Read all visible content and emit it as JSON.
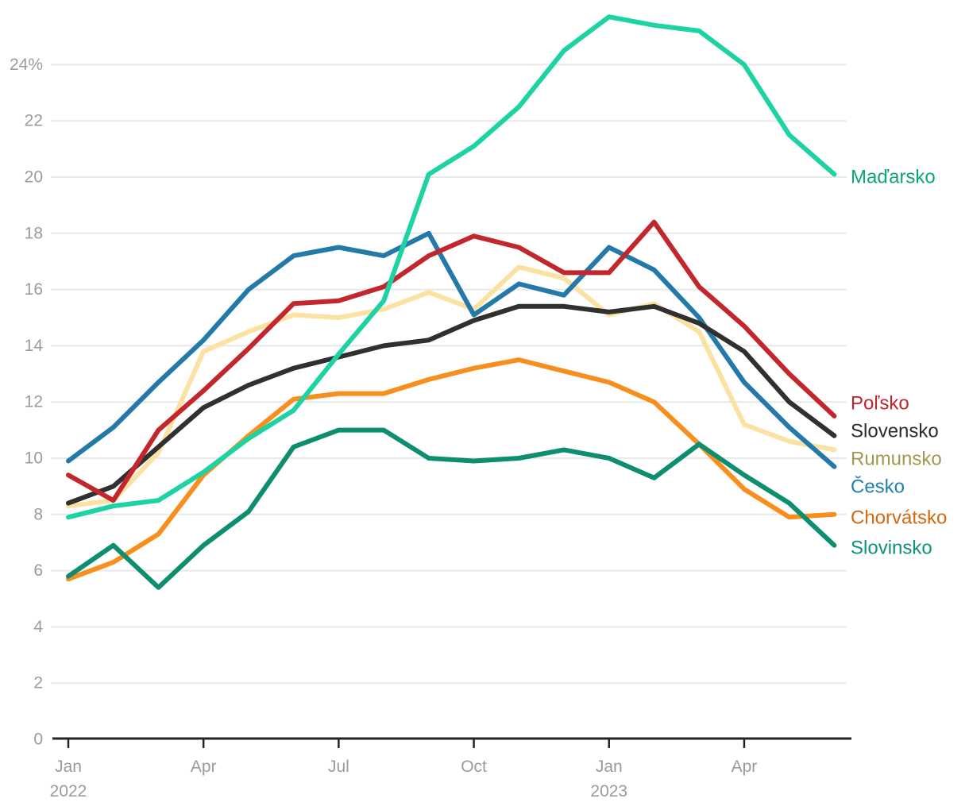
{
  "page": {
    "background_color": "#ffffff",
    "title": ""
  },
  "style": {
    "grid_color": "#e8e8e8",
    "axis_color": "#242424",
    "tick_label_color": "#9b9b9b"
  },
  "chart_data": {
    "type": "line",
    "title": "",
    "unit": "%",
    "grid": "horizontal",
    "legend_position": "right-of-line-ends",
    "x_categories": [
      "Jan 2022",
      "Feb 2022",
      "Mar 2022",
      "Apr 2022",
      "May 2022",
      "Jun 2022",
      "Jul 2022",
      "Aug 2022",
      "Sep 2022",
      "Oct 2022",
      "Nov 2022",
      "Dec 2022",
      "Jan 2023",
      "Feb 2023",
      "Mar 2023",
      "Apr 2023",
      "May 2023",
      "Jun 2023"
    ],
    "y_axis": {
      "min": 0,
      "max": 24,
      "tick_step": 2,
      "tick_labels": [
        "0",
        "2",
        "4",
        "6",
        "8",
        "10",
        "12",
        "14",
        "16",
        "18",
        "20",
        "22",
        "24%"
      ]
    },
    "x_axis": {
      "ticks": [
        {
          "index": 0,
          "label": "Jan",
          "year": "2022"
        },
        {
          "index": 3,
          "label": "Apr",
          "year": ""
        },
        {
          "index": 6,
          "label": "Jul",
          "year": ""
        },
        {
          "index": 9,
          "label": "Oct",
          "year": ""
        },
        {
          "index": 12,
          "label": "Jan",
          "year": "2023"
        },
        {
          "index": 15,
          "label": "Apr",
          "year": ""
        }
      ]
    },
    "series": [
      {
        "id": "rumunsko",
        "name": "Rumunsko",
        "line_color": "#fbe2a3",
        "label_color": "#a3974d",
        "values": [
          8.3,
          8.5,
          10.2,
          13.8,
          14.5,
          15.1,
          15.0,
          15.3,
          15.9,
          15.3,
          16.8,
          16.4,
          15.1,
          15.5,
          14.5,
          11.2,
          10.6,
          10.3
        ]
      },
      {
        "id": "cesko",
        "name": "Česko",
        "line_color": "#2379a8",
        "label_color": "#2180ad",
        "values": [
          9.9,
          11.1,
          12.7,
          14.2,
          16.0,
          17.2,
          17.5,
          17.2,
          18.0,
          15.1,
          16.2,
          15.8,
          17.5,
          16.7,
          15.0,
          12.7,
          11.1,
          9.7
        ]
      },
      {
        "id": "slovensko",
        "name": "Slovensko",
        "line_color": "#303030",
        "label_color": "#2b2b2e",
        "values": [
          8.4,
          9.0,
          10.4,
          11.8,
          12.6,
          13.2,
          13.6,
          14.0,
          14.2,
          14.9,
          15.4,
          15.4,
          15.2,
          15.4,
          14.8,
          13.8,
          12.0,
          10.8
        ]
      },
      {
        "id": "polsko",
        "name": "Poľsko",
        "line_color": "#c2272d",
        "label_color": "#c3242b",
        "values": [
          9.4,
          8.5,
          11.0,
          12.4,
          13.9,
          15.5,
          15.6,
          16.1,
          17.2,
          17.9,
          17.5,
          16.6,
          16.6,
          18.4,
          16.1,
          14.7,
          13.0,
          11.5
        ]
      },
      {
        "id": "chorvatsko",
        "name": "Chorvátsko",
        "line_color": "#f78f1e",
        "label_color": "#d2690e",
        "values": [
          5.7,
          6.3,
          7.3,
          9.4,
          10.8,
          12.1,
          12.3,
          12.3,
          12.8,
          13.2,
          13.5,
          13.1,
          12.7,
          12.0,
          10.5,
          8.9,
          7.9,
          8.0
        ]
      },
      {
        "id": "slovinsko",
        "name": "Slovinsko",
        "line_color": "#0e8e70",
        "label_color": "#109279",
        "values": [
          5.8,
          6.9,
          5.4,
          6.9,
          8.1,
          10.4,
          11.0,
          11.0,
          10.0,
          9.9,
          10.0,
          10.3,
          10.0,
          9.3,
          10.5,
          9.4,
          8.4,
          6.9
        ]
      },
      {
        "id": "madarsko",
        "name": "Maďarsko",
        "line_color": "#1dd3a4",
        "label_color": "#0ba578",
        "values": [
          7.9,
          8.3,
          8.5,
          9.5,
          10.7,
          11.7,
          13.7,
          15.6,
          20.1,
          21.1,
          22.5,
          24.5,
          25.7,
          25.4,
          25.2,
          24.0,
          21.5,
          20.1
        ]
      }
    ]
  }
}
